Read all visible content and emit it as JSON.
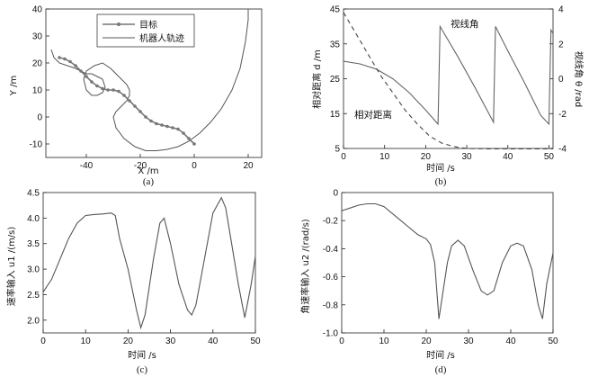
{
  "figure": {
    "captions": [
      "(a)",
      "(b)",
      "(c)",
      "(d)"
    ]
  },
  "chart_data": [
    {
      "id": "a",
      "type": "line",
      "xlabel": "X /m",
      "ylabel": "Y /m",
      "xlim": [
        -55,
        25
      ],
      "ylim": [
        -15,
        40
      ],
      "xticks": [
        "-40",
        "-20",
        "0",
        "20"
      ],
      "xtick_values": [
        -40,
        -20,
        0,
        20
      ],
      "yticks": [
        "40",
        "30",
        "20",
        "10",
        "0",
        "-10"
      ],
      "ytick_values": [
        40,
        30,
        20,
        10,
        0,
        -10
      ],
      "legend": [
        "目标",
        "机器人轨迹"
      ],
      "legend_position": "top-center",
      "series": [
        {
          "name": "目标",
          "marker": "dot",
          "x": [
            -50,
            -48,
            -46,
            -44,
            -42,
            -40,
            -38,
            -36,
            -34,
            -32,
            -30,
            -28,
            -26,
            -24,
            -22,
            -20,
            -18,
            -16,
            -14,
            -12,
            -10,
            -8,
            -6,
            -4,
            -2,
            0
          ],
          "y": [
            22,
            21.5,
            20.5,
            19,
            17,
            15,
            13,
            11.5,
            10.5,
            10,
            10,
            9.5,
            8,
            6,
            4,
            2,
            0,
            -1.5,
            -2.5,
            -3,
            -3.5,
            -4,
            -4.5,
            -6,
            -8,
            -10
          ]
        },
        {
          "name": "机器人轨迹",
          "x": [
            -53,
            -52,
            -50,
            -47,
            -44,
            -42,
            -40,
            -38,
            -36,
            -34,
            -33,
            -34,
            -36,
            -38,
            -40,
            -41,
            -40,
            -37,
            -34,
            -31,
            -28,
            -25,
            -24,
            -24,
            -25,
            -27,
            -29,
            -30,
            -29,
            -26,
            -22,
            -18,
            -14,
            -10,
            -6,
            -2,
            2,
            6,
            10,
            14,
            17,
            19,
            20,
            20
          ],
          "y": [
            25,
            22,
            20,
            19,
            18,
            17,
            16,
            16,
            15,
            14,
            11,
            9,
            8,
            8,
            10,
            14,
            17,
            19,
            20,
            18,
            15,
            12,
            10,
            8,
            6,
            4,
            2,
            0,
            -4,
            -8,
            -11,
            -12.5,
            -12.5,
            -12,
            -11,
            -9,
            -6,
            -2,
            3,
            10,
            18,
            28,
            36,
            40
          ]
        }
      ]
    },
    {
      "id": "b",
      "type": "line",
      "xlabel": "时间 /s",
      "ylabel_left": "相对距离 d /m",
      "ylabel_right": "视线角 θ /rad",
      "xlim": [
        0,
        51
      ],
      "ylim_left": [
        5,
        45
      ],
      "ylim_right": [
        -4,
        4
      ],
      "xticks": [
        "0",
        "10",
        "20",
        "30",
        "40",
        "50"
      ],
      "xtick_values": [
        0,
        10,
        20,
        30,
        40,
        50
      ],
      "yticks_left": [
        "45",
        "35",
        "25",
        "15",
        "5"
      ],
      "ytick_values_left": [
        45,
        35,
        25,
        15,
        5
      ],
      "yticks_right": [
        "4",
        "2",
        "0",
        "-2",
        "-4"
      ],
      "ytick_values_right": [
        4,
        2,
        0,
        -2,
        -4
      ],
      "annotations": [
        "视线角",
        "相对距离"
      ],
      "series": [
        {
          "name": "视线角",
          "axis": "right",
          "x": [
            0,
            4,
            8,
            12,
            16,
            20,
            23,
            23.5,
            28,
            32,
            36.5,
            37,
            40,
            44,
            48,
            50,
            50.5,
            51
          ],
          "y": [
            1.0,
            0.85,
            0.55,
            0.0,
            -0.8,
            -1.8,
            -2.6,
            3.0,
            1.2,
            -0.5,
            -2.5,
            3.0,
            1.6,
            -0.2,
            -2.1,
            -2.6,
            2.8,
            2.6
          ]
        },
        {
          "name": "相对距离",
          "axis": "left",
          "dashed": true,
          "x": [
            0,
            3,
            6,
            9,
            12,
            15,
            18,
            21,
            24,
            27,
            30,
            35,
            40,
            45,
            51
          ],
          "y": [
            44,
            38,
            32,
            26,
            21,
            16,
            12,
            8.5,
            6.5,
            5.5,
            5.0,
            4.9,
            4.9,
            4.9,
            4.9
          ]
        }
      ]
    },
    {
      "id": "c",
      "type": "line",
      "xlabel": "时间 /s",
      "ylabel": "速率输入 u1 /(m/s)",
      "xlim": [
        0,
        50
      ],
      "ylim": [
        1.75,
        4.5
      ],
      "xticks": [
        "0",
        "10",
        "20",
        "30",
        "40",
        "50"
      ],
      "xtick_values": [
        0,
        10,
        20,
        30,
        40,
        50
      ],
      "yticks": [
        "4.5",
        "4.0",
        "3.5",
        "3.0",
        "2.5",
        "2.0"
      ],
      "ytick_values": [
        4.5,
        4.0,
        3.5,
        3.0,
        2.5,
        2.0
      ],
      "series": [
        {
          "name": "速率输入",
          "x": [
            0,
            2,
            4,
            6,
            8,
            10,
            12,
            14,
            16,
            17,
            18,
            20,
            22,
            23,
            24,
            26,
            27.5,
            28.5,
            30,
            32,
            34,
            35,
            36,
            38,
            40,
            42,
            43,
            44,
            46,
            47.5,
            49,
            50
          ],
          "y": [
            2.55,
            2.8,
            3.2,
            3.6,
            3.9,
            4.05,
            4.07,
            4.08,
            4.1,
            4.05,
            3.6,
            3.0,
            2.2,
            1.85,
            2.1,
            3.2,
            3.9,
            4.0,
            3.5,
            2.7,
            2.2,
            2.1,
            2.3,
            3.2,
            4.1,
            4.4,
            4.2,
            3.7,
            2.7,
            2.05,
            2.7,
            3.25
          ]
        }
      ]
    },
    {
      "id": "d",
      "type": "line",
      "xlabel": "时间 /s",
      "ylabel": "角速率输入 u2 /(rad/s)",
      "xlim": [
        0,
        50
      ],
      "ylim": [
        -1.0,
        0.0
      ],
      "xticks": [
        "0",
        "10",
        "20",
        "30",
        "40",
        "50"
      ],
      "xtick_values": [
        0,
        10,
        20,
        30,
        40,
        50
      ],
      "yticks": [
        "0",
        "-0.2",
        "-0.4",
        "-0.6",
        "-0.8",
        "-1.0"
      ],
      "ytick_values": [
        0,
        -0.2,
        -0.4,
        -0.6,
        -0.8,
        -1.0
      ],
      "series": [
        {
          "name": "角速率输入",
          "x": [
            0,
            2,
            4,
            6,
            8,
            10,
            12,
            14,
            16,
            18,
            20,
            21,
            22,
            23,
            24,
            25,
            26,
            27.5,
            29,
            31,
            33,
            34.5,
            36,
            38,
            40,
            41.5,
            43,
            45,
            46.5,
            47.5,
            48.5,
            50
          ],
          "y": [
            -0.13,
            -0.11,
            -0.09,
            -0.08,
            -0.08,
            -0.1,
            -0.15,
            -0.2,
            -0.25,
            -0.3,
            -0.33,
            -0.37,
            -0.5,
            -0.9,
            -0.7,
            -0.5,
            -0.38,
            -0.34,
            -0.38,
            -0.55,
            -0.7,
            -0.73,
            -0.7,
            -0.5,
            -0.38,
            -0.36,
            -0.38,
            -0.55,
            -0.8,
            -0.9,
            -0.65,
            -0.43
          ]
        }
      ]
    }
  ]
}
